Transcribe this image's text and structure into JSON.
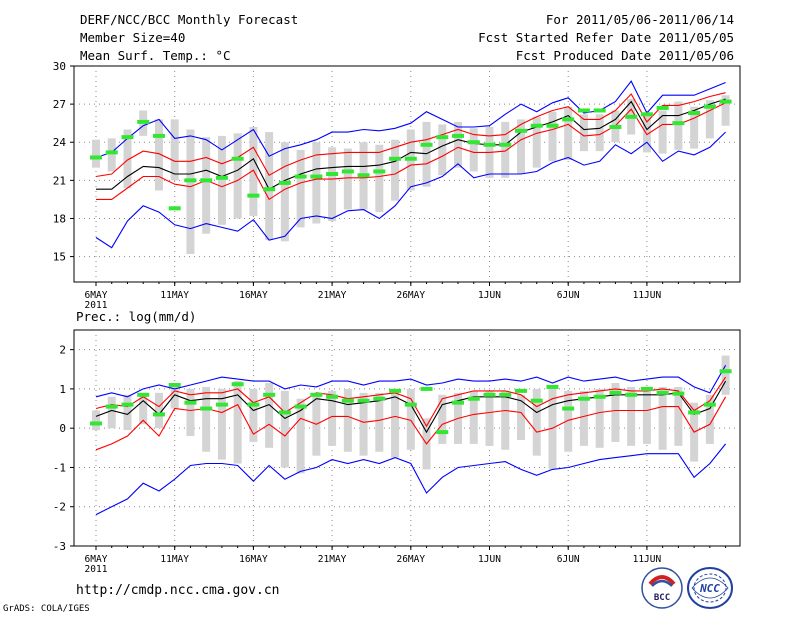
{
  "header": {
    "title": "DERF/NCC/BCC Monthly Forecast",
    "member_size": "Member Size=40",
    "variable": "Mean Surf. Temp.: °C",
    "period": "For 2011/05/06-2011/06/14",
    "refer_date": "Fcst Started Refer Date 2011/05/05",
    "produced_date": "Fcst Produced Date 2011/05/06"
  },
  "footer": {
    "url": "http://cmdp.ncc.cma.gov.cn",
    "credit": "GrADS: COLA/IGES",
    "logo_left": "BCC",
    "logo_right": "NCC"
  },
  "chart_data": [
    {
      "type": "line",
      "title": "Mean Surf. Temp.: °C",
      "xlabel": "",
      "ylabel": "",
      "year_label": "2011",
      "x_tick_labels": [
        "6MAY",
        "11MAY",
        "16MAY",
        "21MAY",
        "26MAY",
        "1JUN",
        "6JUN",
        "11JUN"
      ],
      "x_tick_days": [
        1,
        6,
        11,
        16,
        21,
        26,
        31,
        36
      ],
      "ylim": [
        13,
        30
      ],
      "y_ticks": [
        15,
        18,
        21,
        24,
        27,
        30
      ],
      "series": [
        {
          "name": "max",
          "color": "#0000ff",
          "values": [
            16.5,
            15.7,
            17.8,
            19.0,
            18.5,
            17.5,
            17.2,
            17.6,
            17.3,
            17.0,
            17.9,
            16.3,
            16.6,
            18.0,
            18.2,
            18.0,
            18.6,
            18.7,
            18.0,
            19.0,
            20.5,
            20.8,
            21.3,
            22.3,
            21.2,
            21.5,
            21.5,
            21.5,
            21.7,
            22.4,
            22.8,
            22.2,
            22.5,
            23.8,
            23.1,
            24.0,
            22.5,
            23.3,
            23.0,
            23.6,
            24.8
          ]
        },
        {
          "name": "min",
          "color": "#0000ff",
          "values": [
            22.8,
            23.2,
            24.3,
            25.3,
            25.8,
            24.3,
            24.5,
            24.2,
            23.4,
            24.2,
            25.0,
            22.9,
            23.5,
            23.8,
            24.2,
            24.8,
            24.8,
            25.0,
            24.9,
            25.1,
            25.5,
            26.4,
            25.8,
            25.2,
            25.2,
            25.3,
            26.2,
            27.0,
            26.4,
            27.1,
            27.5,
            26.3,
            26.5,
            27.2,
            28.8,
            26.3,
            27.7,
            27.7,
            27.7,
            28.2,
            28.7
          ]
        },
        {
          "name": "q_low",
          "color": "#ff0000",
          "values": [
            19.5,
            19.5,
            20.4,
            21.3,
            21.3,
            20.7,
            20.5,
            21.0,
            20.5,
            21.0,
            21.8,
            19.5,
            20.3,
            20.8,
            21.1,
            21.1,
            21.2,
            21.2,
            21.3,
            21.5,
            22.2,
            22.3,
            22.9,
            23.6,
            23.2,
            23.2,
            23.3,
            24.2,
            24.7,
            25.0,
            25.4,
            24.5,
            24.6,
            25.3,
            26.6,
            24.6,
            25.4,
            25.4,
            25.9,
            26.5,
            27.1
          ]
        },
        {
          "name": "q_high",
          "color": "#ff0000",
          "values": [
            21.3,
            21.5,
            22.6,
            23.3,
            23.1,
            22.5,
            22.5,
            22.8,
            22.3,
            22.8,
            23.6,
            21.4,
            22.1,
            22.6,
            23.0,
            23.1,
            23.2,
            23.2,
            23.2,
            23.6,
            24.0,
            24.2,
            24.6,
            25.0,
            24.6,
            24.5,
            24.6,
            25.4,
            26.0,
            26.5,
            26.8,
            25.8,
            25.8,
            26.5,
            27.8,
            25.6,
            26.9,
            26.9,
            27.2,
            27.6,
            27.9
          ]
        },
        {
          "name": "ensemble_mean",
          "color": "#000000",
          "values": [
            20.3,
            20.3,
            21.3,
            22.1,
            22.0,
            21.5,
            21.5,
            21.8,
            21.3,
            21.8,
            22.7,
            20.3,
            21.0,
            21.5,
            21.9,
            22.0,
            22.1,
            22.1,
            22.2,
            22.5,
            23.2,
            23.1,
            23.7,
            24.2,
            23.9,
            23.8,
            23.8,
            24.8,
            25.2,
            25.6,
            26.1,
            25.0,
            25.1,
            25.8,
            27.2,
            25.0,
            26.1,
            26.1,
            26.5,
            27.0,
            27.4
          ]
        }
      ],
      "member_spread": [
        [
          22.0,
          24.2
        ],
        [
          21.7,
          24.3
        ],
        [
          20.4,
          25.0
        ],
        [
          24.5,
          26.5
        ],
        [
          20.2,
          25.8
        ],
        [
          21.0,
          25.8
        ],
        [
          15.2,
          25.0
        ],
        [
          16.8,
          24.4
        ],
        [
          17.5,
          24.5
        ],
        [
          18.0,
          24.7
        ],
        [
          18.2,
          25.2
        ],
        [
          16.3,
          24.8
        ],
        [
          16.2,
          24.0
        ],
        [
          17.3,
          23.4
        ],
        [
          17.6,
          24.0
        ],
        [
          17.8,
          23.6
        ],
        [
          18.7,
          23.5
        ],
        [
          18.7,
          24.0
        ],
        [
          18.5,
          23.8
        ],
        [
          19.4,
          24.2
        ],
        [
          20.2,
          25.0
        ],
        [
          20.5,
          25.6
        ],
        [
          21.4,
          25.4
        ],
        [
          22.0,
          25.6
        ],
        [
          21.7,
          25.1
        ],
        [
          21.2,
          25.2
        ],
        [
          21.2,
          25.6
        ],
        [
          21.5,
          25.8
        ],
        [
          22.0,
          26.0
        ],
        [
          22.5,
          26.4
        ],
        [
          22.6,
          26.8
        ],
        [
          23.3,
          26.2
        ],
        [
          23.3,
          26.2
        ],
        [
          24.0,
          26.5
        ],
        [
          24.6,
          27.4
        ],
        [
          23.2,
          26.3
        ],
        [
          23.1,
          26.5
        ],
        [
          23.4,
          27.2
        ],
        [
          23.5,
          26.8
        ],
        [
          24.3,
          27.3
        ],
        [
          25.3,
          27.7
        ]
      ],
      "observed": [
        22.8,
        23.2,
        24.4,
        25.6,
        24.5,
        18.8,
        21.0,
        21.0,
        21.2,
        22.7,
        19.8,
        20.3,
        20.8,
        21.3,
        21.3,
        21.5,
        21.7,
        21.4,
        21.7,
        22.7,
        22.7,
        23.8,
        24.4,
        24.5,
        24.0,
        23.8,
        23.8,
        24.9,
        25.3,
        25.3,
        25.8,
        26.5,
        26.5,
        25.2,
        26.0,
        26.2,
        26.7,
        25.5,
        26.3,
        26.8,
        27.2
      ]
    },
    {
      "type": "line",
      "title": "Prec.: log(mm/d)",
      "xlabel": "",
      "ylabel": "",
      "year_label": "2011",
      "x_tick_labels": [
        "6MAY",
        "11MAY",
        "16MAY",
        "21MAY",
        "26MAY",
        "1JUN",
        "6JUN",
        "11JUN"
      ],
      "x_tick_days": [
        1,
        6,
        11,
        16,
        21,
        26,
        31,
        36
      ],
      "ylim": [
        -3,
        2.5
      ],
      "y_ticks": [
        -3,
        -2,
        -1,
        0,
        1,
        2
      ],
      "series": [
        {
          "name": "max",
          "color": "#0000ff",
          "values": [
            -2.2,
            -2.0,
            -1.8,
            -1.4,
            -1.6,
            -1.3,
            -0.95,
            -0.9,
            -0.9,
            -0.95,
            -1.35,
            -0.95,
            -1.3,
            -1.1,
            -1.0,
            -0.8,
            -0.9,
            -0.8,
            -0.9,
            -0.75,
            -0.9,
            -1.65,
            -1.25,
            -1.0,
            -0.95,
            -0.9,
            -0.85,
            -1.05,
            -1.2,
            -1.05,
            -1.0,
            -0.9,
            -0.8,
            -0.75,
            -0.7,
            -0.65,
            -0.65,
            -0.65,
            -1.25,
            -0.9,
            -0.4
          ]
        },
        {
          "name": "min",
          "color": "#0000ff",
          "values": [
            0.8,
            0.9,
            0.8,
            1.0,
            1.1,
            1.0,
            1.1,
            1.2,
            1.3,
            1.25,
            1.2,
            1.2,
            1.0,
            1.1,
            1.05,
            1.2,
            1.2,
            1.1,
            1.2,
            1.2,
            1.25,
            1.1,
            1.15,
            1.25,
            1.2,
            1.2,
            1.25,
            1.2,
            1.3,
            1.15,
            1.3,
            1.2,
            1.25,
            1.3,
            1.2,
            1.25,
            1.3,
            1.3,
            1.05,
            0.9,
            1.6
          ]
        },
        {
          "name": "q_low",
          "color": "#ff0000",
          "values": [
            -0.55,
            -0.4,
            -0.2,
            0.2,
            -0.2,
            0.5,
            0.45,
            0.5,
            0.4,
            0.6,
            -0.15,
            0.1,
            -0.2,
            0.25,
            0.1,
            0.3,
            0.3,
            0.15,
            0.2,
            0.3,
            0.2,
            -0.4,
            0.1,
            0.25,
            0.35,
            0.4,
            0.45,
            0.4,
            -0.1,
            0.0,
            0.2,
            0.3,
            0.4,
            0.45,
            0.45,
            0.45,
            0.55,
            0.55,
            -0.1,
            0.1,
            0.8
          ]
        },
        {
          "name": "q_high",
          "color": "#ff0000",
          "values": [
            0.5,
            0.6,
            0.55,
            0.8,
            0.55,
            0.95,
            0.85,
            0.9,
            0.9,
            1.0,
            0.65,
            0.8,
            0.4,
            0.65,
            0.9,
            0.85,
            0.75,
            0.8,
            0.85,
            0.9,
            0.75,
            0.05,
            0.75,
            0.85,
            0.95,
            0.95,
            0.95,
            0.85,
            0.55,
            0.75,
            0.85,
            0.9,
            0.95,
            1.0,
            0.95,
            0.95,
            1.0,
            0.95,
            0.45,
            0.7,
            1.3
          ]
        },
        {
          "name": "ensemble_mean",
          "color": "#000000",
          "values": [
            0.3,
            0.45,
            0.35,
            0.7,
            0.35,
            0.85,
            0.7,
            0.75,
            0.75,
            0.85,
            0.45,
            0.6,
            0.25,
            0.45,
            0.75,
            0.7,
            0.6,
            0.65,
            0.7,
            0.8,
            0.6,
            -0.1,
            0.6,
            0.7,
            0.8,
            0.8,
            0.8,
            0.7,
            0.4,
            0.6,
            0.7,
            0.75,
            0.8,
            0.85,
            0.85,
            0.85,
            0.85,
            0.9,
            0.35,
            0.5,
            1.2
          ]
        }
      ],
      "member_spread": [
        [
          -0.05,
          0.45
        ],
        [
          0.0,
          0.8
        ],
        [
          -0.05,
          0.85
        ],
        [
          0.1,
          0.9
        ],
        [
          0.0,
          0.9
        ],
        [
          0.5,
          1.1
        ],
        [
          -0.2,
          1.0
        ],
        [
          -0.6,
          1.05
        ],
        [
          -0.8,
          1.0
        ],
        [
          -0.9,
          1.2
        ],
        [
          -0.35,
          1.0
        ],
        [
          -0.5,
          1.15
        ],
        [
          -1.0,
          0.95
        ],
        [
          -1.15,
          0.75
        ],
        [
          -0.7,
          0.9
        ],
        [
          -0.45,
          0.95
        ],
        [
          -0.6,
          1.0
        ],
        [
          -0.7,
          0.9
        ],
        [
          -0.6,
          0.9
        ],
        [
          -0.75,
          0.95
        ],
        [
          -0.55,
          1.0
        ],
        [
          -1.05,
          0.25
        ],
        [
          -0.4,
          0.85
        ],
        [
          -0.4,
          0.9
        ],
        [
          -0.4,
          0.95
        ],
        [
          -0.45,
          0.95
        ],
        [
          -0.55,
          0.95
        ],
        [
          -0.3,
          0.85
        ],
        [
          -0.7,
          1.0
        ],
        [
          -1.05,
          1.0
        ],
        [
          -0.6,
          0.95
        ],
        [
          -0.45,
          0.95
        ],
        [
          -0.5,
          1.0
        ],
        [
          -0.35,
          1.15
        ],
        [
          -0.45,
          1.05
        ],
        [
          -0.4,
          1.0
        ],
        [
          -0.55,
          1.05
        ],
        [
          -0.45,
          1.05
        ],
        [
          -0.85,
          0.65
        ],
        [
          -0.4,
          0.85
        ],
        [
          0.85,
          1.85
        ]
      ],
      "observed": [
        0.12,
        0.55,
        0.6,
        0.85,
        0.35,
        1.1,
        0.65,
        0.5,
        0.6,
        1.12,
        0.6,
        0.85,
        0.4,
        0.55,
        0.85,
        0.8,
        0.7,
        0.7,
        0.75,
        0.95,
        0.6,
        1.0,
        -0.1,
        0.65,
        0.75,
        0.85,
        0.85,
        0.95,
        0.7,
        1.05,
        0.5,
        0.75,
        0.8,
        0.9,
        0.85,
        1.0,
        0.9,
        0.88,
        0.4,
        0.6,
        1.45
      ]
    }
  ]
}
